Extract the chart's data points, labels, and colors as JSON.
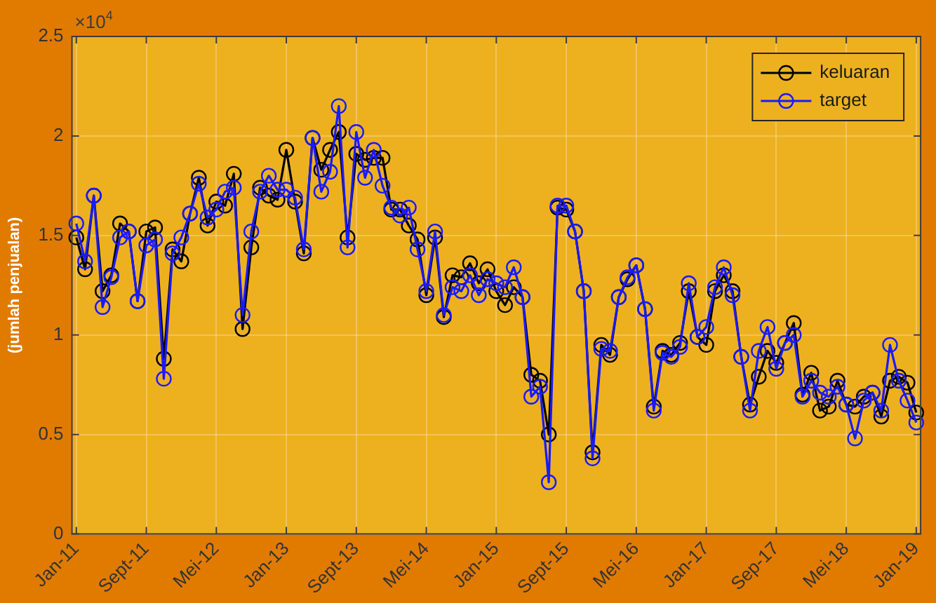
{
  "chart_data": {
    "type": "line",
    "ylabel": "(jumlah penjualan)",
    "annotations": [
      "×10$^{4}$"
    ],
    "categories": [
      "Jan-11",
      null,
      null,
      null,
      null,
      null,
      null,
      null,
      "Sept-11",
      null,
      null,
      null,
      null,
      null,
      null,
      null,
      "Mei-12",
      null,
      null,
      null,
      null,
      null,
      null,
      null,
      "Jan-13",
      null,
      null,
      null,
      null,
      null,
      null,
      null,
      "Sept-13",
      null,
      null,
      null,
      null,
      null,
      null,
      null,
      "Mei-14",
      null,
      null,
      null,
      null,
      null,
      null,
      null,
      "Jan-15",
      null,
      null,
      null,
      null,
      null,
      null,
      null,
      "Sept-15",
      null,
      null,
      null,
      null,
      null,
      null,
      null,
      "Mei-16",
      null,
      null,
      null,
      null,
      null,
      null,
      null,
      "Jan-17",
      null,
      null,
      null,
      null,
      null,
      null,
      null,
      "Sep-17",
      null,
      null,
      null,
      null,
      null,
      null,
      null,
      "Mei-18",
      null,
      null,
      null,
      null,
      null,
      null,
      null,
      "Jan-19"
    ],
    "series": [
      {
        "name": "keluaran",
        "color": "#000000",
        "values": [
          1.49,
          1.33,
          1.7,
          1.22,
          1.3,
          1.56,
          1.52,
          1.17,
          1.52,
          1.54,
          0.88,
          1.43,
          1.37,
          1.61,
          1.79,
          1.55,
          1.67,
          1.65,
          1.81,
          1.03,
          1.44,
          1.74,
          1.7,
          1.68,
          1.93,
          1.67,
          1.41,
          1.99,
          1.83,
          1.93,
          2.02,
          1.49,
          1.91,
          1.88,
          1.89,
          1.89,
          1.63,
          1.63,
          1.55,
          1.48,
          1.2,
          1.49,
          1.09,
          1.3,
          1.29,
          1.36,
          1.26,
          1.33,
          1.22,
          1.15,
          1.24,
          1.19,
          0.8,
          0.77,
          0.5,
          1.64,
          1.63,
          1.52,
          1.22,
          0.41,
          0.95,
          0.9,
          1.19,
          1.28,
          1.35,
          1.13,
          0.64,
          0.92,
          0.9,
          0.96,
          1.22,
          0.99,
          0.95,
          1.22,
          1.3,
          1.22,
          0.89,
          0.65,
          0.79,
          0.92,
          0.86,
          0.96,
          1.06,
          0.7,
          0.81,
          0.62,
          0.64,
          0.77,
          0.65,
          0.64,
          0.69,
          0.71,
          0.59,
          0.77,
          0.79,
          0.76,
          0.61
        ]
      },
      {
        "name": "target",
        "color": "#1a1aff",
        "values": [
          1.56,
          1.37,
          1.7,
          1.14,
          1.29,
          1.49,
          1.52,
          1.17,
          1.45,
          1.48,
          0.78,
          1.41,
          1.49,
          1.61,
          1.76,
          1.59,
          1.63,
          1.72,
          1.74,
          1.1,
          1.52,
          1.72,
          1.8,
          1.73,
          1.73,
          1.69,
          1.43,
          1.99,
          1.72,
          1.82,
          2.15,
          1.44,
          2.02,
          1.79,
          1.93,
          1.75,
          1.64,
          1.6,
          1.64,
          1.43,
          1.22,
          1.52,
          1.1,
          1.24,
          1.22,
          1.3,
          1.2,
          1.28,
          1.26,
          1.24,
          1.34,
          1.19,
          0.69,
          0.74,
          0.26,
          1.65,
          1.65,
          1.52,
          1.22,
          0.38,
          0.93,
          0.92,
          1.19,
          1.29,
          1.35,
          1.13,
          0.62,
          0.91,
          0.89,
          0.94,
          1.26,
          0.99,
          1.04,
          1.24,
          1.34,
          1.2,
          0.89,
          0.62,
          0.92,
          1.04,
          0.83,
          0.96,
          1.0,
          0.69,
          0.77,
          0.71,
          0.69,
          0.74,
          0.65,
          0.48,
          0.67,
          0.71,
          0.62,
          0.95,
          0.77,
          0.67,
          0.56
        ]
      }
    ],
    "ylim": [
      0,
      2.5
    ],
    "yticks": [
      0,
      0.5,
      1,
      1.5,
      2,
      2.5
    ],
    "grid": true,
    "legend": "top right",
    "marker": "circle",
    "line_style": "solid"
  }
}
